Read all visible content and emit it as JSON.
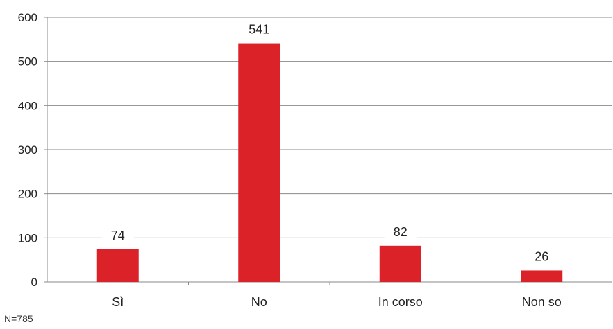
{
  "chart_data": {
    "type": "bar",
    "categories": [
      "Sì",
      "No",
      "In corso",
      "Non so"
    ],
    "values": [
      74,
      541,
      82,
      26
    ],
    "data_labels": [
      "74",
      "541",
      "82",
      "26"
    ],
    "title": "",
    "xlabel": "",
    "ylabel": "",
    "ylim": [
      0,
      600
    ],
    "yticks": [
      0,
      100,
      200,
      300,
      400,
      500,
      600
    ],
    "grid": true,
    "legend": "none",
    "bar_color": "#dc2229"
  },
  "footnote": "N=785"
}
